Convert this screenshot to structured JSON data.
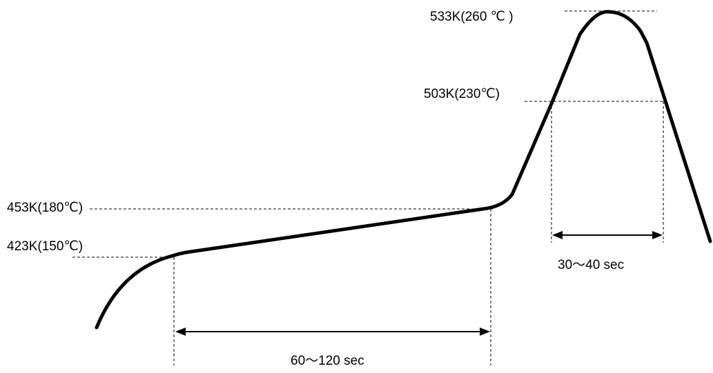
{
  "labels": {
    "peak": "533K(260 ℃ )",
    "reflow": "503K(230℃)",
    "preheat_end": "453K(180℃)",
    "preheat_start": "423K(150℃)",
    "reflow_duration": "30～40 sec",
    "preheat_duration": "60～120 sec"
  },
  "colors": {
    "line": "#000000",
    "background": "#ffffff"
  }
}
